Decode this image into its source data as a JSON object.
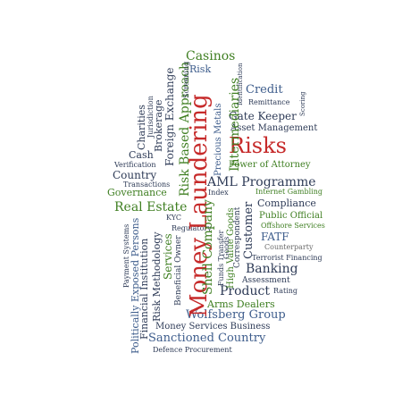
{
  "words": [
    {
      "id": "casinos",
      "text": "Casinos",
      "color": "green",
      "size": 14
    },
    {
      "id": "risk_small",
      "text": "Risk",
      "color": "blue",
      "size": 11
    },
    {
      "id": "credit",
      "text": "Credit",
      "color": "blue",
      "size": 13
    },
    {
      "id": "remittance",
      "text": "Remittance",
      "color": "dark",
      "size": 8
    },
    {
      "id": "gate_keeper",
      "text": "Gate Keeper",
      "color": "dark",
      "size": 12
    },
    {
      "id": "asset_management",
      "text": "Asset Management",
      "color": "dark",
      "size": 10
    },
    {
      "id": "risks",
      "text": "Risks",
      "color": "red",
      "size": 24
    },
    {
      "id": "power_of_attorney",
      "text": "Power of Attorney",
      "color": "green",
      "size": 10
    },
    {
      "id": "country",
      "text": "Country",
      "color": "dark",
      "size": 12
    },
    {
      "id": "aml_programme",
      "text": "AML Programme",
      "color": "dark",
      "size": 14
    },
    {
      "id": "governance",
      "text": "Governance",
      "color": "green",
      "size": 11
    },
    {
      "id": "real_estate",
      "text": "Real Estate",
      "color": "green",
      "size": 14
    },
    {
      "id": "internet_gambling",
      "text": "Internet Gambling",
      "color": "green",
      "size": 8
    },
    {
      "id": "compliance",
      "text": "Compliance",
      "color": "dark",
      "size": 11
    },
    {
      "id": "public_official",
      "text": "Public Official",
      "color": "green",
      "size": 10
    },
    {
      "id": "offshore_services",
      "text": "Offshore Services",
      "color": "green",
      "size": 8
    },
    {
      "id": "fatf",
      "text": "FATF",
      "color": "blue",
      "size": 12
    },
    {
      "id": "counterparty",
      "text": "Counterparty",
      "color": "gray",
      "size": 8
    },
    {
      "id": "terrorist_financing",
      "text": "Terrorist Financing",
      "color": "dark",
      "size": 8
    },
    {
      "id": "banking",
      "text": "Banking",
      "color": "dark",
      "size": 14
    },
    {
      "id": "assessment",
      "text": "Assessment",
      "color": "dark",
      "size": 9
    },
    {
      "id": "product",
      "text": "Product",
      "color": "dark",
      "size": 14
    },
    {
      "id": "rating",
      "text": "Rating",
      "color": "dark",
      "size": 8
    },
    {
      "id": "arms_dealers",
      "text": "Arms Dealers",
      "color": "green",
      "size": 11
    },
    {
      "id": "wolfsberg_group",
      "text": "Wolfsberg Group",
      "color": "blue",
      "size": 13
    },
    {
      "id": "money_services_business",
      "text": "Money Services Business",
      "color": "dark",
      "size": 10
    },
    {
      "id": "sanctioned_country",
      "text": "Sanctioned Country",
      "color": "blue",
      "size": 13
    },
    {
      "id": "defence_procurement",
      "text": "Defence Procurement",
      "color": "dark",
      "size": 8
    },
    {
      "id": "verification",
      "text": "Verification",
      "color": "dark",
      "size": 8
    },
    {
      "id": "transactions",
      "text": "Transactions",
      "color": "dark",
      "size": 8
    },
    {
      "id": "index",
      "text": "Index",
      "color": "dark",
      "size": 8
    },
    {
      "id": "kyc",
      "text": "KYC",
      "color": "dark",
      "size": 8
    },
    {
      "id": "regulatory",
      "text": "Regulatory",
      "color": "dark",
      "size": 8
    },
    {
      "id": "cash",
      "text": "Cash",
      "color": "dark",
      "size": 11
    },
    {
      "id": "charities",
      "text": "Charities",
      "color": "dark",
      "size": 11
    },
    {
      "id": "jurisdiction",
      "text": "Jurisdiction",
      "color": "dark",
      "size": 8
    },
    {
      "id": "brokerage",
      "text": "Brokerage",
      "color": "dark",
      "size": 11
    },
    {
      "id": "foreign_exchange",
      "text": "Foreign Exchange",
      "color": "dark",
      "size": 12
    },
    {
      "id": "risk_based_approach",
      "text": "Risk Based Approach",
      "color": "green",
      "size": 14
    },
    {
      "id": "money_laundering",
      "text": "Money Laundering",
      "color": "red",
      "size": 26
    },
    {
      "id": "precious_metals",
      "text": "Precious Metals",
      "color": "blue",
      "size": 10
    },
    {
      "id": "intermediaries",
      "text": "Intermediaries",
      "color": "green",
      "size": 14
    },
    {
      "id": "correspondent",
      "text": "Correspondent",
      "color": "dark",
      "size": 9
    },
    {
      "id": "customer",
      "text": "Customer",
      "color": "dark",
      "size": 13
    },
    {
      "id": "high_value_goods",
      "text": "High Value Goods",
      "color": "green",
      "size": 10
    },
    {
      "id": "funds_transfer",
      "text": "Funds Transfer",
      "color": "dark",
      "size": 8
    },
    {
      "id": "shell_company",
      "text": "Shell Company",
      "color": "green",
      "size": 14
    },
    {
      "id": "services",
      "text": "Services",
      "color": "green",
      "size": 12
    },
    {
      "id": "beneficial_owner",
      "text": "Beneficial Owner",
      "color": "dark",
      "size": 9
    },
    {
      "id": "risk_methodology",
      "text": "Risk Methodology",
      "color": "dark",
      "size": 11
    },
    {
      "id": "financial_institution",
      "text": "Financial Institution",
      "color": "dark",
      "size": 11
    },
    {
      "id": "politically_exposed_persons",
      "text": "Politically Exposed Persons",
      "color": "blue",
      "size": 11
    },
    {
      "id": "payment_systems",
      "text": "Payment Systems",
      "color": "dark",
      "size": 8
    },
    {
      "id": "screening",
      "text": "Screening",
      "color": "dark",
      "size": 8
    },
    {
      "id": "scoring",
      "text": "Scoring",
      "color": "dark",
      "size": 7
    },
    {
      "id": "identification",
      "text": "Identification",
      "color": "dark",
      "size": 7
    },
    {
      "id": "goods",
      "text": "Goods",
      "color": "dark",
      "size": 8
    }
  ]
}
